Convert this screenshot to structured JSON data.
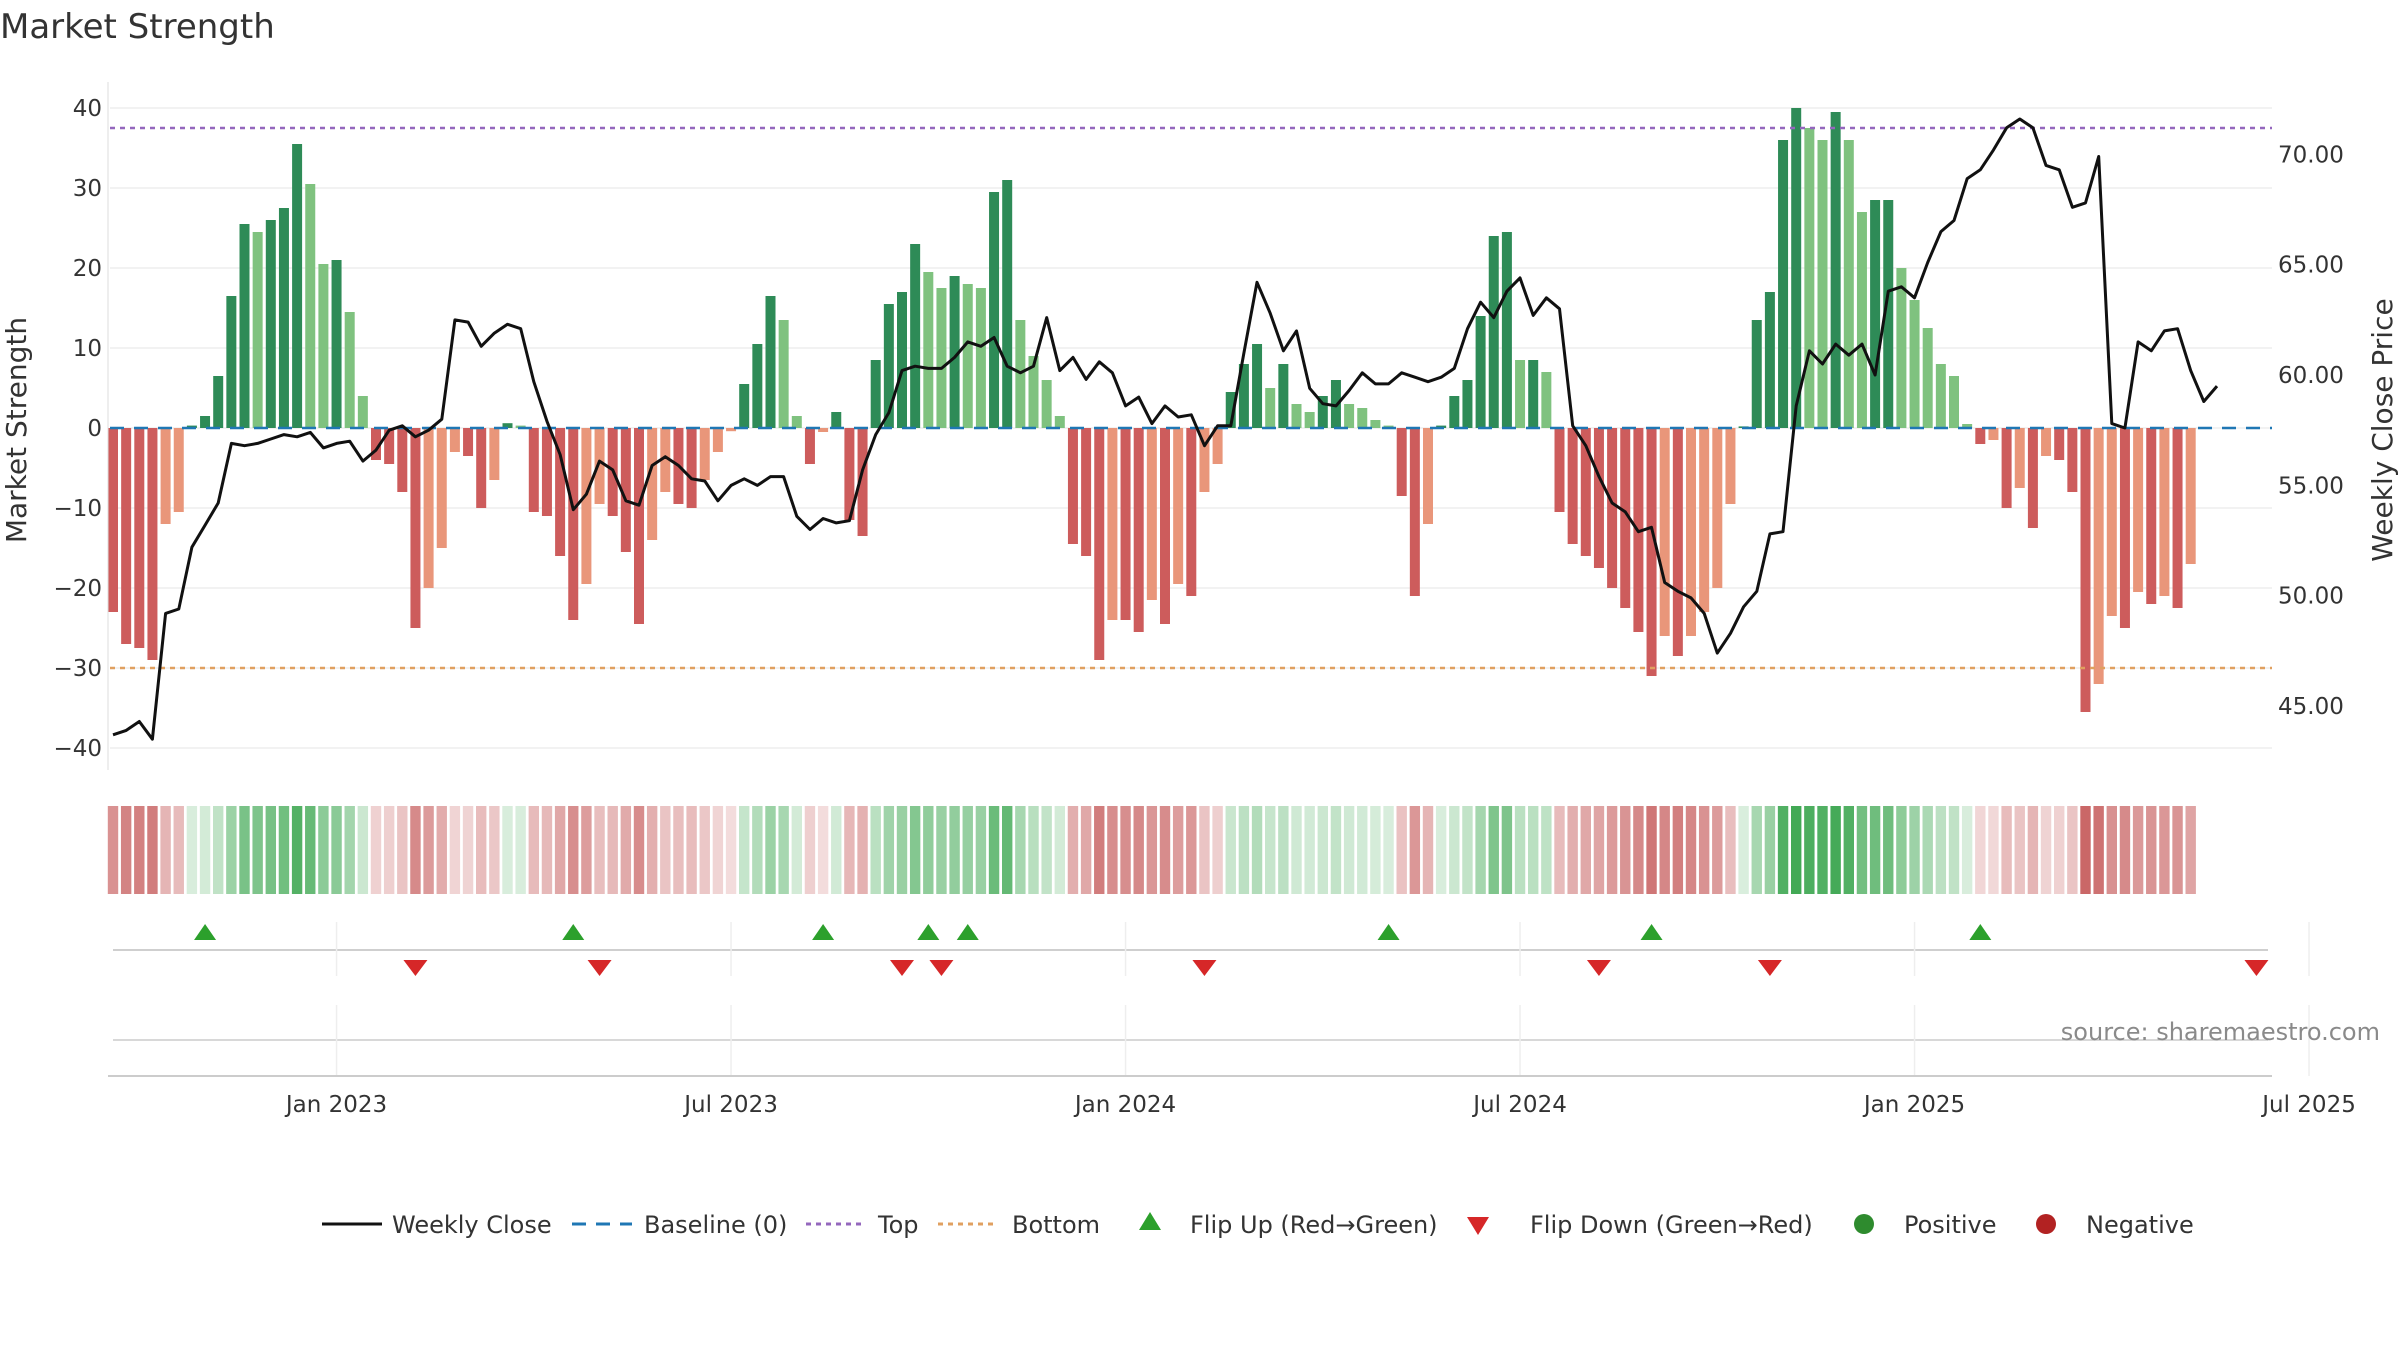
{
  "colors": {
    "greenDark": "#2e8b57",
    "greenLight": "#7fc27f",
    "redDark": "#cd5c5c",
    "redLight": "#e9967a",
    "close": "#111111",
    "baseline": "#1f77b4",
    "top": "#9467bd",
    "bottom": "#e0a060",
    "flipUp": "#2ca02c",
    "flipDown": "#d62728",
    "positive": "#2e8b2e",
    "negative": "#b22222",
    "grid": "#e6e6e6"
  },
  "chart_data": {
    "type": "bar",
    "title": "Market Strength",
    "ylabel_left": "Market Strength",
    "ylabel_right": "Weekly Close Price",
    "ylim_left": [
      -43,
      42
    ],
    "ylim_right": [
      42.67,
      72.56
    ],
    "yticks_left": [
      "40",
      "30",
      "20",
      "10",
      "0",
      "−10",
      "−20",
      "−30",
      "−40"
    ],
    "yticks_right": [
      "70.00",
      "65.00",
      "60.00",
      "55.00",
      "50.00",
      "45.00"
    ],
    "xtick_labels": [
      "Jan 2023",
      "Jul 2023",
      "Jan 2024",
      "Jul 2024",
      "Jan 2025",
      "Jul 2025"
    ],
    "xtick_week_index": [
      17,
      47,
      77,
      107,
      137,
      167
    ],
    "top_level": 37.5,
    "bottom_level": -30,
    "baseline": 0,
    "strength": [
      -23,
      -27,
      -27.5,
      -29,
      -12,
      -10.5,
      0.3,
      1.5,
      6.5,
      16.5,
      25.5,
      24.5,
      26,
      27.5,
      35.5,
      30.5,
      20.5,
      21,
      14.5,
      4,
      -4,
      -4.5,
      -8,
      -25,
      -20,
      -15,
      -3,
      -3.5,
      -10,
      -6.5,
      0.6,
      0.3,
      -10.5,
      -11,
      -16,
      -24,
      -19.5,
      -9.5,
      -11,
      -15.5,
      -24.5,
      -14,
      -8,
      -9.5,
      -10,
      -6.5,
      -3,
      -0.4,
      5.5,
      10.5,
      16.5,
      13.5,
      1.5,
      -4.5,
      -0.5,
      2,
      -11.5,
      -13.5,
      8.5,
      15.5,
      17,
      23,
      19.5,
      17.5,
      19,
      18,
      17.5,
      29.5,
      31,
      13.5,
      9,
      6,
      1.5,
      -14.5,
      -16,
      -29,
      -24,
      -24,
      -25.5,
      -21.5,
      -24.5,
      -19.5,
      -21,
      -8,
      -4.5,
      4.5,
      8,
      10.5,
      5,
      8,
      3,
      2,
      4,
      6,
      3,
      2.5,
      1,
      0.3,
      -8.5,
      -21,
      -12,
      0.3,
      4,
      6,
      14,
      24,
      24.5,
      8.5,
      8.5,
      7,
      -10.5,
      -14.5,
      -16,
      -17.5,
      -20,
      -22.5,
      -25.5,
      -31,
      -26,
      -28.5,
      -26,
      -23,
      -20,
      -9.5,
      0.2,
      13.5,
      17,
      36,
      40,
      37.5,
      36,
      39.5,
      36,
      27,
      28.5,
      28.5,
      20,
      16,
      12.5,
      8,
      6.5,
      0.5,
      -2,
      -1.5,
      -10,
      -7.5,
      -12.5,
      -3.5,
      -4,
      -8,
      -35.5,
      -32,
      -23.5,
      -25,
      -20.5,
      -22,
      -21,
      -22.5,
      -17
    ],
    "close": [
      43.7,
      43.9,
      44.3,
      43.5,
      49.2,
      49.4,
      52.2,
      53.2,
      54.2,
      56.9,
      56.8,
      56.9,
      57.1,
      57.3,
      57.2,
      57.4,
      56.7,
      56.9,
      57.0,
      56.1,
      56.6,
      57.5,
      57.7,
      57.2,
      57.5,
      58.0,
      62.5,
      62.4,
      61.3,
      61.9,
      62.3,
      62.1,
      59.7,
      57.9,
      56.4,
      53.9,
      54.6,
      56.1,
      55.7,
      54.3,
      54.1,
      55.9,
      56.3,
      55.9,
      55.3,
      55.2,
      54.3,
      55.0,
      55.3,
      55.0,
      55.4,
      55.4,
      53.6,
      53.0,
      53.5,
      53.3,
      53.4,
      55.7,
      57.3,
      58.3,
      60.2,
      60.4,
      60.3,
      60.3,
      60.8,
      61.5,
      61.3,
      61.7,
      60.4,
      60.1,
      60.4,
      62.6,
      60.2,
      60.8,
      59.8,
      60.6,
      60.1,
      58.6,
      59.0,
      57.8,
      58.6,
      58.1,
      58.2,
      56.8,
      57.7,
      57.7,
      61.0,
      64.2,
      62.8,
      61.1,
      62.0,
      59.4,
      58.7,
      58.6,
      59.3,
      60.1,
      59.6,
      59.6,
      60.1,
      59.9,
      59.7,
      59.9,
      60.3,
      62.1,
      63.3,
      62.6,
      63.8,
      64.4,
      62.7,
      63.5,
      63.0,
      57.7,
      56.8,
      55.4,
      54.2,
      53.8,
      52.9,
      53.1,
      50.6,
      50.2,
      49.9,
      49.2,
      47.4,
      48.3,
      49.5,
      50.2,
      52.8,
      52.9,
      58.6,
      61.1,
      60.5,
      61.4,
      60.9,
      61.4,
      60.0,
      63.8,
      64.0,
      63.5,
      65.1,
      66.5,
      67.0,
      68.9,
      69.3,
      70.2,
      71.2,
      71.6,
      71.2,
      69.5,
      69.3,
      67.6,
      67.8,
      69.9,
      57.8,
      57.6,
      61.5,
      61.1,
      62.0,
      62.1,
      60.2,
      58.8,
      59.5
    ],
    "strength_bars": [
      {
        "shade": "r3"
      }
    ],
    "flip_up_weeks": [
      7,
      35,
      54,
      62,
      65,
      97,
      117,
      142
    ],
    "flip_down_weeks": [
      23,
      37,
      60,
      63,
      83,
      113,
      126,
      163
    ],
    "legend": [
      "Weekly Close",
      "Baseline (0)",
      "Top",
      "Bottom",
      "Flip Up (Red→Green)",
      "Flip Down (Green→Red)",
      "Positive",
      "Negative"
    ]
  },
  "source_text": "source: sharemaestro.com"
}
